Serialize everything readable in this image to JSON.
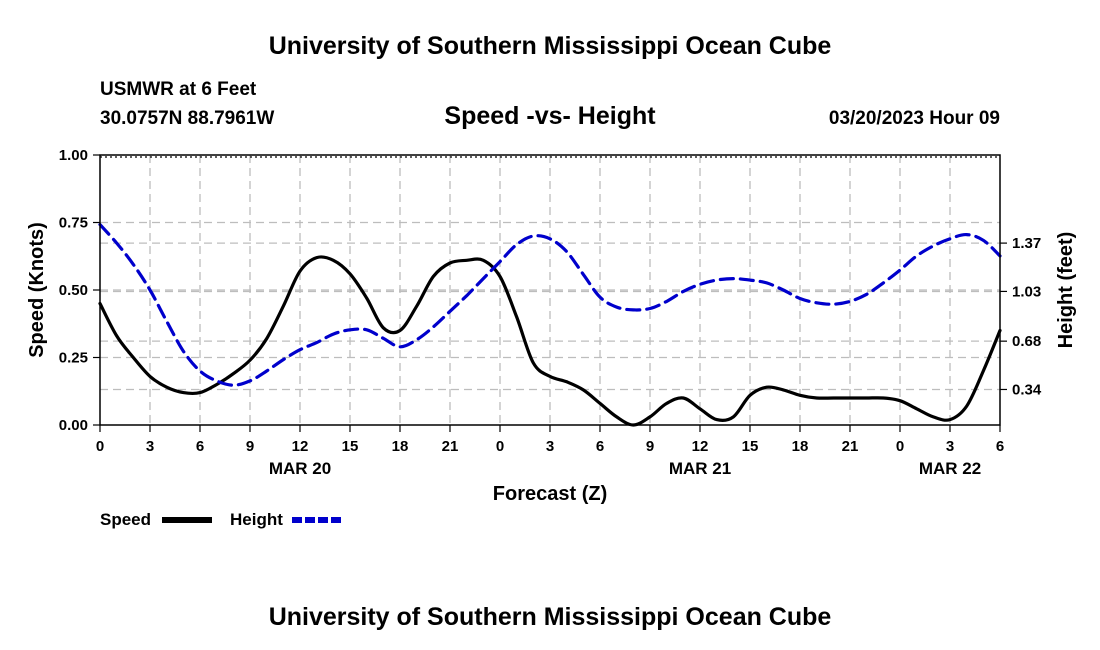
{
  "header": {
    "title": "University of Southern Mississippi Ocean Cube",
    "station": "USMWR at 6 Feet",
    "coords": "30.0757N  88.7961W",
    "run_time": "03/20/2023 Hour 09",
    "footer_title": "University of Southern Mississippi Ocean Cube"
  },
  "chart_data": {
    "type": "line",
    "title": "Speed -vs- Height",
    "xlabel": "Forecast (Z)",
    "ylabel": "Speed (Knots)",
    "y2label": "Height (feet)",
    "x_hours": [
      0,
      1,
      2,
      3,
      4,
      5,
      6,
      7,
      8,
      9,
      10,
      11,
      12,
      13,
      14,
      15,
      16,
      17,
      18,
      19,
      20,
      21,
      22,
      23,
      24,
      25,
      26,
      27,
      28,
      29,
      30,
      31,
      32,
      33,
      34,
      35,
      36,
      37,
      38,
      39,
      40,
      41,
      42,
      43,
      44,
      45,
      46,
      47,
      48,
      49,
      50,
      51,
      52,
      53,
      54
    ],
    "xlim": [
      0,
      54
    ],
    "x_ticks": [
      0,
      3,
      6,
      9,
      12,
      15,
      18,
      21,
      24,
      27,
      30,
      33,
      36,
      39,
      42,
      45,
      48,
      51,
      54
    ],
    "x_tick_labels": [
      "0",
      "3",
      "6",
      "9",
      "12",
      "15",
      "18",
      "21",
      "0",
      "3",
      "6",
      "9",
      "12",
      "15",
      "18",
      "21",
      "0",
      "3",
      "6"
    ],
    "date_labels": [
      {
        "x": 12,
        "label": "MAR 20"
      },
      {
        "x": 36,
        "label": "MAR 21"
      },
      {
        "x": 51,
        "label": "MAR 22"
      }
    ],
    "ylim": [
      0,
      1.0
    ],
    "y_ticks": [
      0,
      0.25,
      0.5,
      0.75,
      1.0
    ],
    "y_tick_labels": [
      "0.00",
      "0.25",
      "0.50",
      "0.75",
      "1.00"
    ],
    "y2_ticks": [
      0.34,
      0.68,
      1.03,
      1.37
    ],
    "y2_tick_labels": [
      "0.34",
      "0.68",
      "1.03",
      "1.37"
    ],
    "y2lim": [
      0.09,
      1.99
    ],
    "series": [
      {
        "name": "Speed",
        "axis": "left",
        "color": "#000000",
        "dashed": false,
        "values": [
          0.45,
          0.33,
          0.25,
          0.18,
          0.14,
          0.12,
          0.12,
          0.15,
          0.19,
          0.24,
          0.32,
          0.44,
          0.57,
          0.62,
          0.61,
          0.56,
          0.47,
          0.36,
          0.35,
          0.44,
          0.55,
          0.6,
          0.61,
          0.61,
          0.55,
          0.4,
          0.23,
          0.18,
          0.16,
          0.13,
          0.08,
          0.03,
          0.0,
          0.03,
          0.08,
          0.1,
          0.06,
          0.02,
          0.03,
          0.11,
          0.14,
          0.13,
          0.11,
          0.1,
          0.1,
          0.1,
          0.1,
          0.1,
          0.09,
          0.06,
          0.03,
          0.02,
          0.07,
          0.2,
          0.35
        ]
      },
      {
        "name": "Height",
        "axis": "right",
        "color": "#0000cc",
        "dashed": true,
        "values": [
          1.5,
          1.37,
          1.22,
          1.04,
          0.82,
          0.61,
          0.47,
          0.4,
          0.37,
          0.4,
          0.47,
          0.55,
          0.62,
          0.67,
          0.73,
          0.76,
          0.76,
          0.7,
          0.64,
          0.69,
          0.78,
          0.89,
          1.0,
          1.12,
          1.24,
          1.36,
          1.42,
          1.4,
          1.31,
          1.15,
          0.99,
          0.92,
          0.9,
          0.91,
          0.96,
          1.03,
          1.08,
          1.11,
          1.12,
          1.11,
          1.09,
          1.04,
          0.98,
          0.95,
          0.94,
          0.96,
          1.01,
          1.09,
          1.18,
          1.28,
          1.35,
          1.4,
          1.43,
          1.39,
          1.28
        ]
      }
    ],
    "legend": [
      {
        "label": "Speed",
        "color": "#000000",
        "dashed": false
      },
      {
        "label": "Height",
        "color": "#0000cc",
        "dashed": true
      }
    ],
    "legend_position": "bottom-left",
    "grid": true
  }
}
